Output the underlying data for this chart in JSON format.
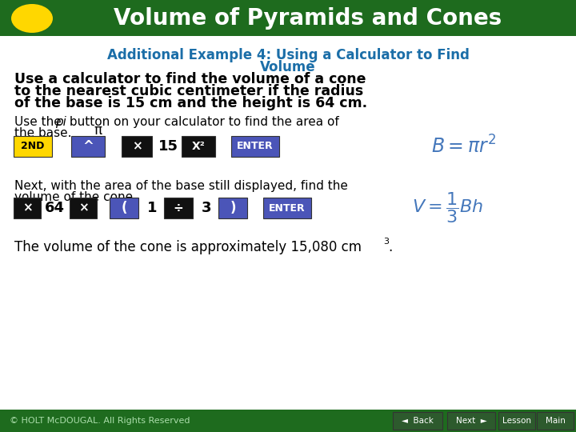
{
  "title": "Volume of Pyramids and Cones",
  "subtitle_line1": "Additional Example 4: Using a Calculator to Find",
  "subtitle_line2": "Volume",
  "problem_line1": "Use a calculator to find the volume of a cone",
  "problem_line2": "to the nearest cubic centimeter if the radius",
  "problem_line3": "of the base is 15 cm and the height is 64 cm.",
  "step1_pre": "Use the ",
  "step1_italic": "pi",
  "step1_post": " button on your calculator to find the area of",
  "step1_line2": "the base.",
  "step2_line1": "Next, with the area of the base still displayed, find the",
  "step2_line2": "volume of the cone.",
  "answer": "The volume of the cone is approximately 15,080 cm",
  "header_bg": "#1e6b1e",
  "header_text_color": "#ffffff",
  "subtitle_color": "#1b6ea8",
  "body_color": "#000000",
  "yellow_btn": "#FFD700",
  "purple_btn": "#4b55b8",
  "black_btn": "#111111",
  "footer_bg": "#1e6b1e",
  "footer_text_color": "#aaddaa",
  "formula_color": "#4477bb"
}
